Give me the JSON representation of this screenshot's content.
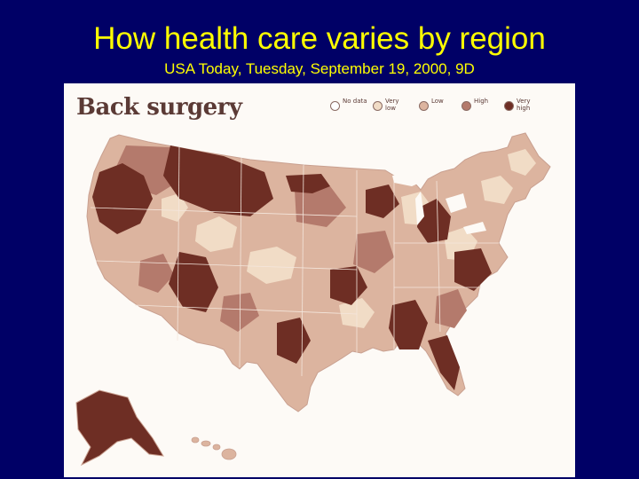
{
  "slide": {
    "title": "How health care varies by region",
    "subtitle": "USA Today, Tuesday, September 19, 2000, 9D"
  },
  "map": {
    "heading": "Back surgery",
    "legend": [
      {
        "label": "No data",
        "color": "#ffffff"
      },
      {
        "label": "Very low",
        "color": "#f1dcc6"
      },
      {
        "label": "Low",
        "color": "#dcb49f"
      },
      {
        "label": "High",
        "color": "#b47a6c"
      },
      {
        "label": "Very high",
        "color": "#6e2e24"
      }
    ]
  },
  "colors": {
    "background": "#000066",
    "title_text": "#ffff00",
    "figure_paper": "#fdfaf6",
    "state_border": "#f4e6dc"
  }
}
